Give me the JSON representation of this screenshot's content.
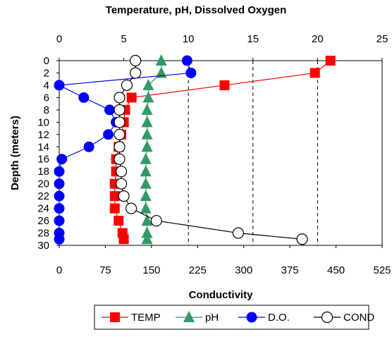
{
  "chart_data": {
    "type": "scatter",
    "title": "Temperature, pH, Dissolved Oxygen",
    "xlabel_bottom": "Conductivity",
    "ylabel": "Depth (meters)",
    "x_top": {
      "range": [
        0,
        25
      ],
      "ticks": [
        "0",
        "5",
        "10",
        "15",
        "20",
        "25"
      ],
      "tick_values": [
        0,
        5,
        10,
        15,
        20,
        25
      ]
    },
    "x_bottom": {
      "range": [
        0,
        525
      ],
      "ticks": [
        "0",
        "75",
        "150",
        "225",
        "300",
        "375",
        "450",
        "525"
      ],
      "tick_values": [
        0,
        75,
        150,
        225,
        300,
        375,
        450,
        525
      ]
    },
    "y": {
      "range": [
        0,
        30
      ],
      "inverted": true,
      "ticks": [
        "0",
        "2",
        "4",
        "6",
        "8",
        "10",
        "12",
        "14",
        "16",
        "18",
        "20",
        "22",
        "24",
        "26",
        "28",
        "30"
      ],
      "tick_values": [
        0,
        2,
        4,
        6,
        8,
        10,
        12,
        14,
        16,
        18,
        20,
        22,
        24,
        26,
        28,
        30
      ]
    },
    "gridlines_x_top": [
      10,
      15,
      20
    ],
    "legend_position": "bottom",
    "series": [
      {
        "name": "TEMP",
        "axis": "top",
        "color": "#ff0000",
        "marker": "square",
        "points": [
          [
            21.0,
            0
          ],
          [
            19.8,
            2
          ],
          [
            12.8,
            4
          ],
          [
            5.6,
            6
          ],
          [
            5.1,
            8
          ],
          [
            5.0,
            10
          ],
          [
            4.8,
            12
          ],
          [
            4.6,
            14
          ],
          [
            4.4,
            16
          ],
          [
            4.4,
            18
          ],
          [
            4.3,
            20
          ],
          [
            4.3,
            22
          ],
          [
            4.3,
            24
          ],
          [
            4.6,
            26
          ],
          [
            4.9,
            28
          ],
          [
            5.0,
            29
          ]
        ]
      },
      {
        "name": "pH",
        "axis": "top",
        "color": "#339966",
        "marker": "triangle",
        "points": [
          [
            7.9,
            0
          ],
          [
            7.9,
            2
          ],
          [
            6.9,
            4
          ],
          [
            6.9,
            6
          ],
          [
            6.8,
            8
          ],
          [
            6.8,
            10
          ],
          [
            6.8,
            12
          ],
          [
            6.8,
            14
          ],
          [
            6.7,
            16
          ],
          [
            6.7,
            18
          ],
          [
            6.7,
            20
          ],
          [
            6.7,
            22
          ],
          [
            6.7,
            24
          ],
          [
            6.8,
            26
          ],
          [
            6.8,
            28
          ],
          [
            6.8,
            29
          ]
        ]
      },
      {
        "name": "D.O.",
        "axis": "top",
        "color": "#0000ff",
        "marker": "circle",
        "points": [
          [
            9.9,
            0
          ],
          [
            10.2,
            2
          ],
          [
            0.0,
            4
          ],
          [
            1.9,
            6
          ],
          [
            3.9,
            8
          ],
          [
            4.4,
            10
          ],
          [
            3.8,
            12
          ],
          [
            2.3,
            14
          ],
          [
            0.2,
            16
          ],
          [
            0.0,
            18
          ],
          [
            0.0,
            20
          ],
          [
            0.0,
            22
          ],
          [
            0.0,
            24
          ],
          [
            0.0,
            26
          ],
          [
            0.0,
            28
          ],
          [
            0.0,
            29
          ]
        ]
      },
      {
        "name": "COND",
        "axis": "bottom",
        "color": "#000000",
        "marker": "open-circle",
        "points": [
          [
            124,
            0
          ],
          [
            124,
            2
          ],
          [
            110,
            4
          ],
          [
            98,
            6
          ],
          [
            98,
            8
          ],
          [
            98,
            10
          ],
          [
            98,
            12
          ],
          [
            98,
            14
          ],
          [
            98,
            16
          ],
          [
            101,
            18
          ],
          [
            101,
            20
          ],
          [
            105,
            22
          ],
          [
            117,
            24
          ],
          [
            158,
            26
          ],
          [
            291,
            28
          ],
          [
            395,
            29
          ]
        ]
      }
    ]
  }
}
